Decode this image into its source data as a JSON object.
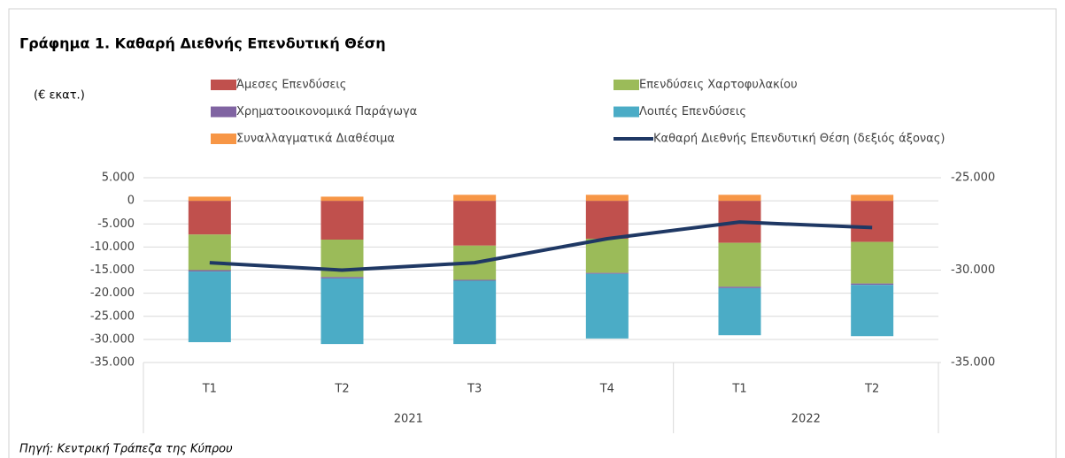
{
  "chart_data": {
    "type": "bar-line",
    "title": "Γράφημα 1. Καθαρή Διεθνής Επενδυτική Θέση",
    "y_label": "(€ εκατ.)",
    "source": "Πηγή: Κεντρική Τράπεζα της Κύπρου",
    "categories": [
      "T1",
      "T2",
      "T3",
      "T4",
      "T1",
      "T2"
    ],
    "groups": [
      {
        "label": "2021",
        "count": 4
      },
      {
        "label": "2022",
        "count": 2
      }
    ],
    "stacked": true,
    "series": [
      {
        "name": "Άμεσες Επενδύσεις",
        "color": "#c0504d",
        "values": [
          -7300,
          -8400,
          -9700,
          -8200,
          -9100,
          -8900
        ]
      },
      {
        "name": "Επενδύσεις Χαρτοφυλακίου",
        "color": "#9bbb59",
        "values": [
          -7700,
          -8100,
          -7400,
          -7400,
          -9500,
          -9000
        ]
      },
      {
        "name": "Χρηματοοικονομικά Παράγωγα",
        "color": "#8064a2",
        "values": [
          -300,
          -300,
          -200,
          -200,
          -300,
          -300
        ]
      },
      {
        "name": "Λοιπές Επενδύσεις",
        "color": "#4bacc6",
        "values": [
          -15300,
          -14200,
          -13700,
          -14000,
          -10200,
          -11100
        ]
      },
      {
        "name": "Συναλλαγματικά Διαθέσιμα",
        "color": "#f79646",
        "values": [
          900,
          900,
          1300,
          1300,
          1300,
          1300
        ]
      },
      {
        "name": "Καθαρή Διεθνής Επενδυτική Θέση (δεξιός άξονας)",
        "color": "#1f3864",
        "type": "line",
        "axis": "y2",
        "values": [
          -29600,
          -30000,
          -29600,
          -28300,
          -27400,
          -27700
        ]
      }
    ],
    "ylim": [
      -35000,
      5000
    ],
    "yticks": [
      {
        "value": 5000,
        "label": "5.000"
      },
      0,
      {
        "value": -5000,
        "label": "-5.000"
      },
      {
        "value": -10000,
        "label": "-10.000"
      },
      {
        "value": -15000,
        "label": "-15.000"
      },
      {
        "value": -20000,
        "label": "-20.000"
      },
      {
        "value": -25000,
        "label": "-25.000"
      },
      {
        "value": -30000,
        "label": "-30.000"
      },
      {
        "value": -35000,
        "label": "-35.000"
      }
    ],
    "y2lim": [
      -35000,
      -25000
    ],
    "y2ticks": [
      {
        "value": -25000,
        "label": "-25.000"
      },
      {
        "value": -30000,
        "label": "-30.000"
      },
      {
        "value": -35000,
        "label": "-35.000"
      }
    ],
    "grid": true
  }
}
